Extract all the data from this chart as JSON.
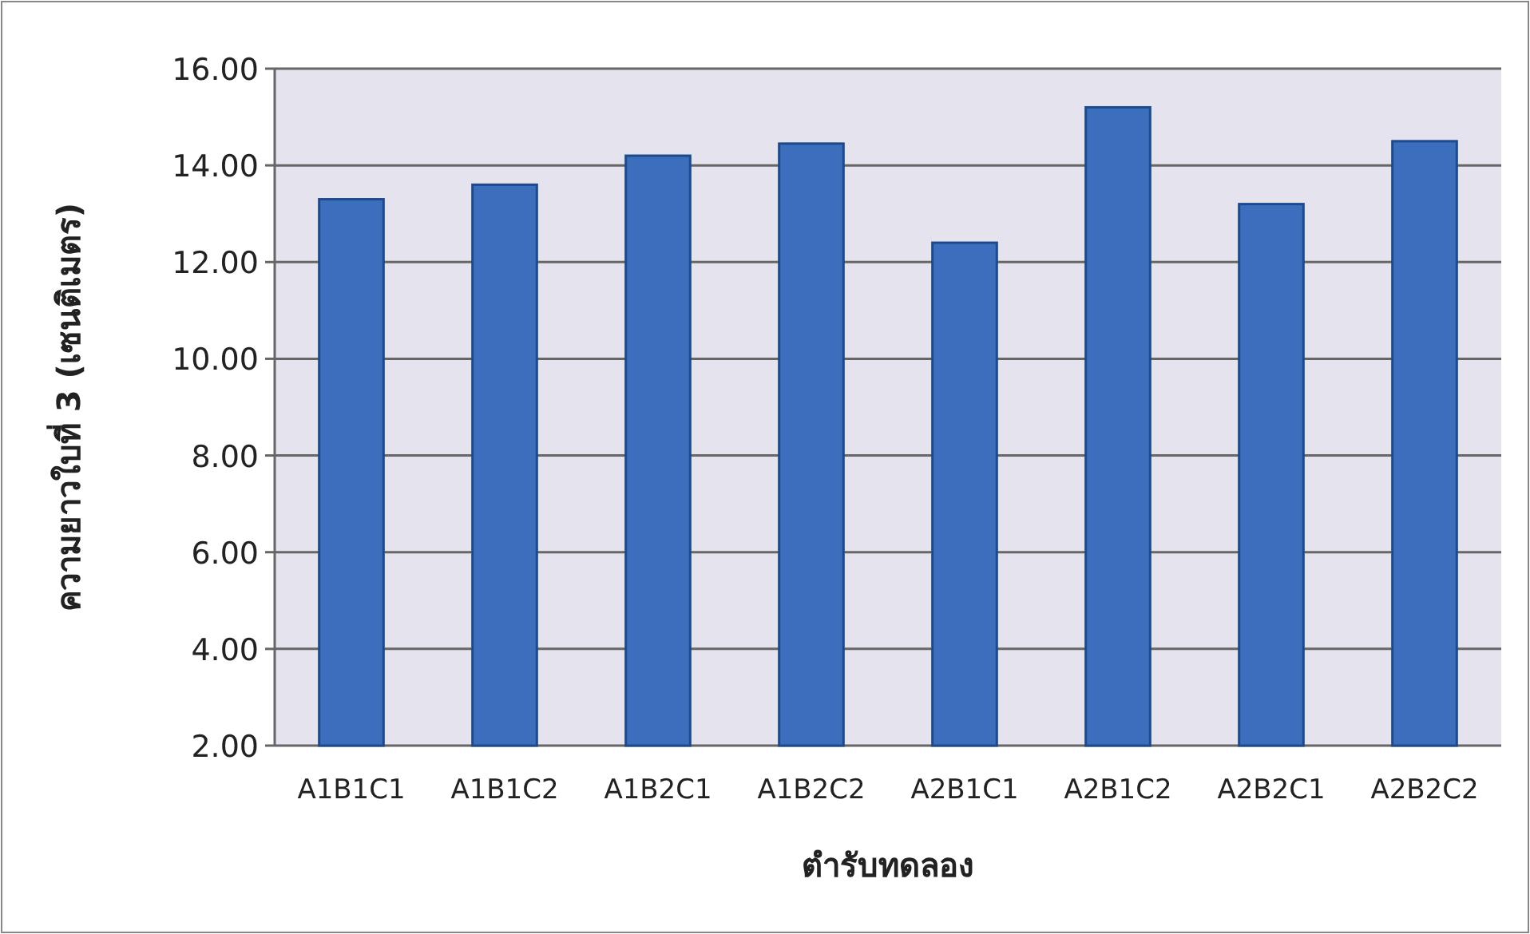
{
  "chart_data": {
    "type": "bar",
    "xlabel": "ตำรับทดลอง",
    "ylabel": "ความยาวใบที่ 3 (เซนติเมตร)",
    "categories": [
      "A1B1C1",
      "A1B1C2",
      "A1B2C1",
      "A1B2C2",
      "A2B1C1",
      "A2B1C2",
      "A2B2C1",
      "A2B2C2"
    ],
    "values": [
      13.3,
      13.6,
      14.2,
      14.45,
      12.4,
      15.2,
      13.2,
      14.5
    ],
    "color": "#3b6fbd",
    "ylim": [
      2,
      16
    ],
    "yticks": [
      {
        "value": 2,
        "label": "2.00"
      },
      {
        "value": 4,
        "label": "4.00"
      },
      {
        "value": 6,
        "label": "6.00"
      },
      {
        "value": 8,
        "label": "8.00"
      },
      {
        "value": 10,
        "label": "10.00"
      },
      {
        "value": 12,
        "label": "12.00"
      },
      {
        "value": 14,
        "label": "14.00"
      },
      {
        "value": 16,
        "label": "16.00"
      }
    ],
    "grid": "y"
  }
}
